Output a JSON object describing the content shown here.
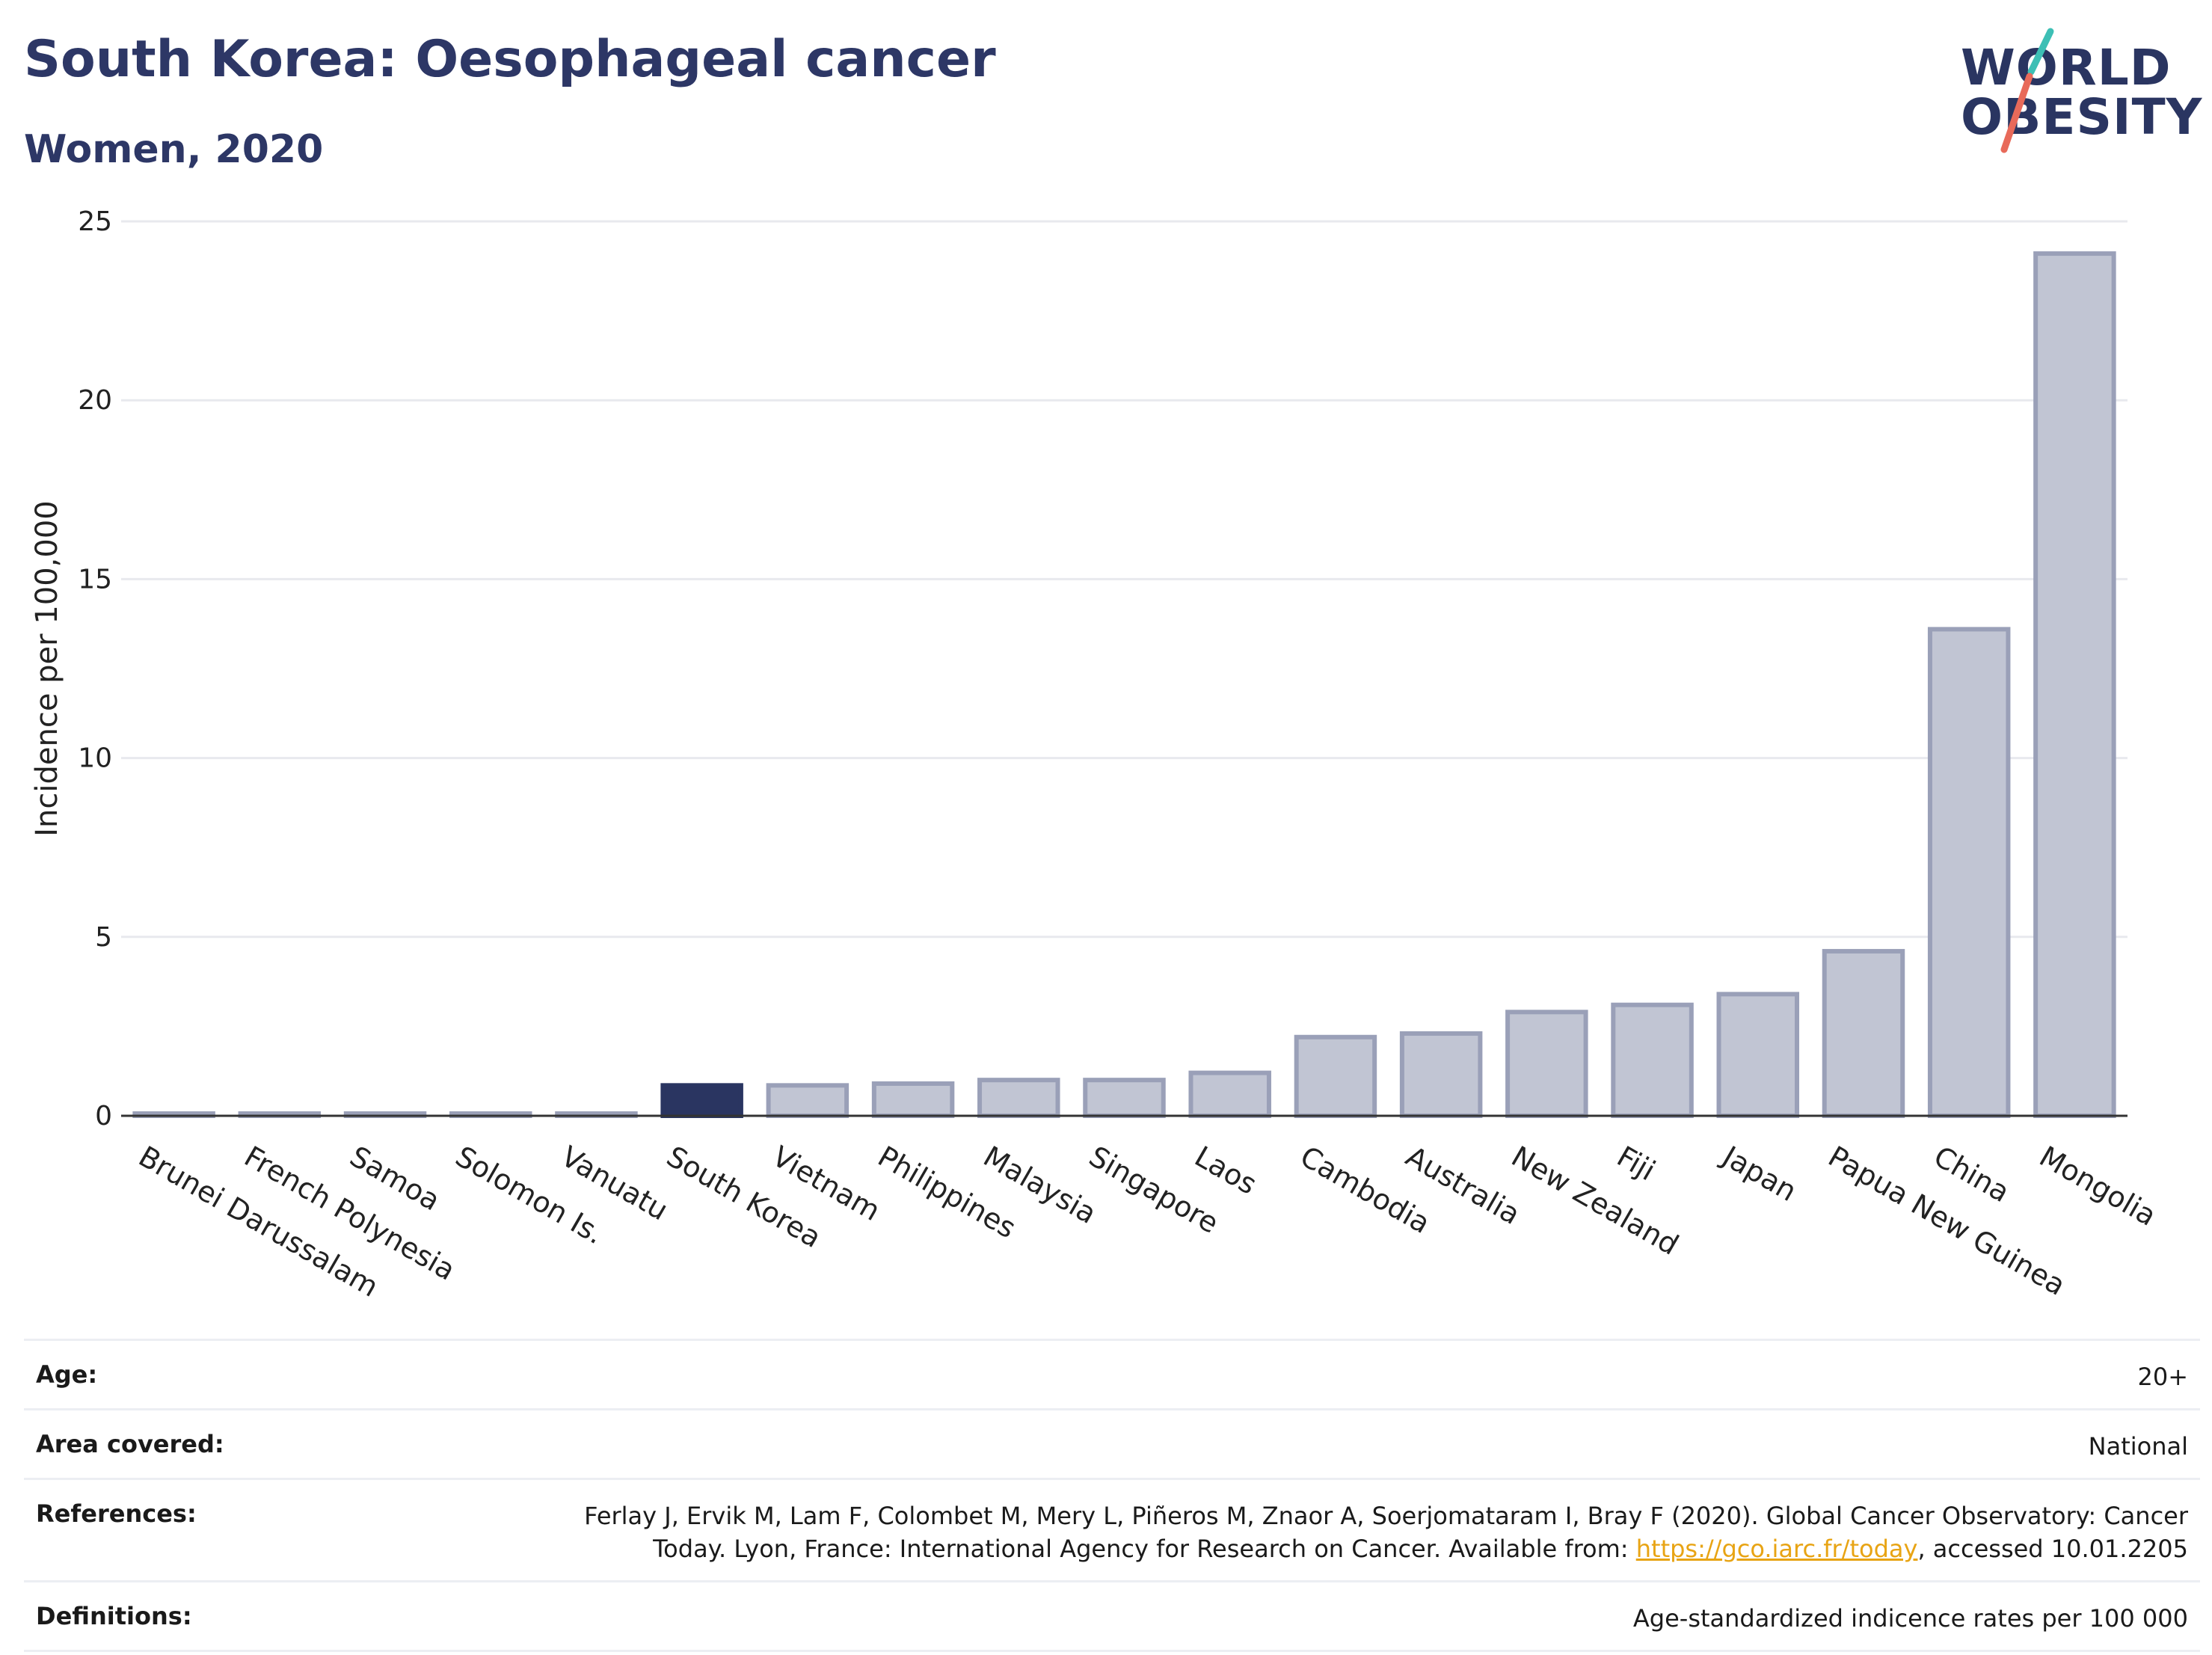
{
  "header": {
    "title": "South Korea: Oesophageal cancer",
    "subtitle": "Women, 2020"
  },
  "logo": {
    "line1": "WORLD",
    "line2": "OBESITY",
    "text_color": "#2a3561",
    "slash_colors": [
      "#3dbfb5",
      "#e86a5a"
    ]
  },
  "chart_data": {
    "type": "bar",
    "categories": [
      "Brunei Darussalam",
      "French Polynesia",
      "Samoa",
      "Solomon Is.",
      "Vanuatu",
      "South Korea",
      "Vietnam",
      "Philippines",
      "Malaysia",
      "Singapore",
      "Laos",
      "Cambodia",
      "Australia",
      "New Zealand",
      "Fiji",
      "Japan",
      "Papua New Guinea",
      "China",
      "Mongolia"
    ],
    "values": [
      0.05,
      0.05,
      0.05,
      0.05,
      0.05,
      0.85,
      0.85,
      0.9,
      1.0,
      1.0,
      1.2,
      2.2,
      2.3,
      2.9,
      3.1,
      3.4,
      4.6,
      13.6,
      24.1
    ],
    "highlight": "South Korea",
    "ylabel": "Incidence per 100,000",
    "ylim": [
      0,
      25
    ],
    "yticks": [
      0,
      5,
      10,
      15,
      20,
      25
    ],
    "grid": true,
    "colors": {
      "highlight_fill": "#2a3561",
      "bar_fill": "#c1c5d3",
      "bar_stroke": "#9aa0b8",
      "grid": "#e8e9ee",
      "axis": "#333333"
    }
  },
  "info": {
    "age_label": "Age:",
    "age_value": "20+",
    "area_label": "Area covered:",
    "area_value": "National",
    "references_label": "References:",
    "references_text_1": "Ferlay J, Ervik M, Lam F, Colombet M, Mery L, Piñeros M, Znaor A, Soerjomataram I, Bray F (2020). Global Cancer Observatory: Cancer Today. Lyon, France: International Agency for Research on Cancer. Available from: ",
    "references_link": "https://gco.iarc.fr/today",
    "references_text_2": ", accessed 10.01.2205",
    "definitions_label": "Definitions:",
    "definitions_value": "Age-standardized indicence rates per 100 000"
  }
}
